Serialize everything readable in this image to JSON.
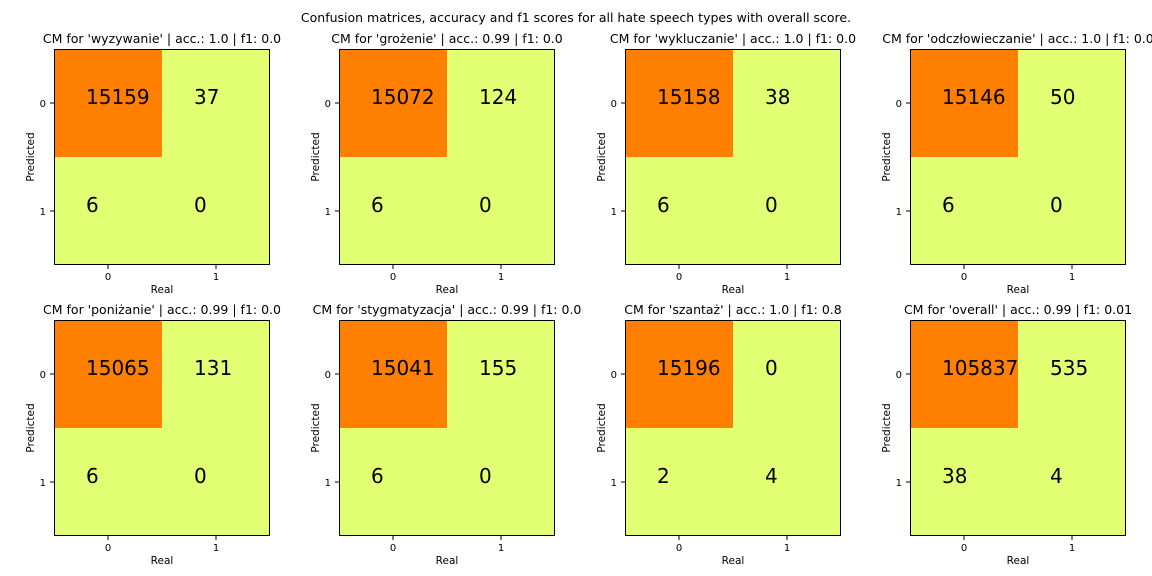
{
  "figure_title": "Confusion matrices, accuracy and f1 scores for all hate speech types with overall score.",
  "colors": {
    "high": "#ff8000",
    "low": "#e2ff73",
    "text": "#000000"
  },
  "chart_data": [
    {
      "type": "heatmap",
      "title": "CM for 'wyzywanie' | acc.: 1.0 | f1: 0.0",
      "xlabel": "Real",
      "ylabel": "Predicted",
      "x_ticks": [
        "0",
        "1"
      ],
      "y_ticks": [
        "0",
        "1"
      ],
      "matrix": [
        [
          15159,
          37
        ],
        [
          6,
          0
        ]
      ]
    },
    {
      "type": "heatmap",
      "title": "CM for 'grożenie' | acc.: 0.99 | f1: 0.0",
      "xlabel": "Real",
      "ylabel": "Predicted",
      "x_ticks": [
        "0",
        "1"
      ],
      "y_ticks": [
        "0",
        "1"
      ],
      "matrix": [
        [
          15072,
          124
        ],
        [
          6,
          0
        ]
      ]
    },
    {
      "type": "heatmap",
      "title": "CM for 'wykluczanie' | acc.: 1.0 | f1: 0.0",
      "xlabel": "Real",
      "ylabel": "Predicted",
      "x_ticks": [
        "0",
        "1"
      ],
      "y_ticks": [
        "0",
        "1"
      ],
      "matrix": [
        [
          15158,
          38
        ],
        [
          6,
          0
        ]
      ]
    },
    {
      "type": "heatmap",
      "title": "CM for 'odczłowieczanie' | acc.: 1.0 | f1: 0.0",
      "xlabel": "Real",
      "ylabel": "Predicted",
      "x_ticks": [
        "0",
        "1"
      ],
      "y_ticks": [
        "0",
        "1"
      ],
      "matrix": [
        [
          15146,
          50
        ],
        [
          6,
          0
        ]
      ]
    },
    {
      "type": "heatmap",
      "title": "CM for 'poniżanie' | acc.: 0.99 | f1: 0.0",
      "xlabel": "Real",
      "ylabel": "Predicted",
      "x_ticks": [
        "0",
        "1"
      ],
      "y_ticks": [
        "0",
        "1"
      ],
      "matrix": [
        [
          15065,
          131
        ],
        [
          6,
          0
        ]
      ]
    },
    {
      "type": "heatmap",
      "title": "CM for 'stygmatyzacja' | acc.: 0.99 | f1: 0.0",
      "xlabel": "Real",
      "ylabel": "Predicted",
      "x_ticks": [
        "0",
        "1"
      ],
      "y_ticks": [
        "0",
        "1"
      ],
      "matrix": [
        [
          15041,
          155
        ],
        [
          6,
          0
        ]
      ]
    },
    {
      "type": "heatmap",
      "title": "CM for 'szantaż' | acc.: 1.0 | f1: 0.8",
      "xlabel": "Real",
      "ylabel": "Predicted",
      "x_ticks": [
        "0",
        "1"
      ],
      "y_ticks": [
        "0",
        "1"
      ],
      "matrix": [
        [
          15196,
          0
        ],
        [
          2,
          4
        ]
      ]
    },
    {
      "type": "heatmap",
      "title": "CM for 'overall' | acc.: 0.99 | f1: 0.01",
      "xlabel": "Real",
      "ylabel": "Predicted",
      "x_ticks": [
        "0",
        "1"
      ],
      "y_ticks": [
        "0",
        "1"
      ],
      "matrix": [
        [
          105837,
          535
        ],
        [
          38,
          4
        ]
      ]
    }
  ]
}
